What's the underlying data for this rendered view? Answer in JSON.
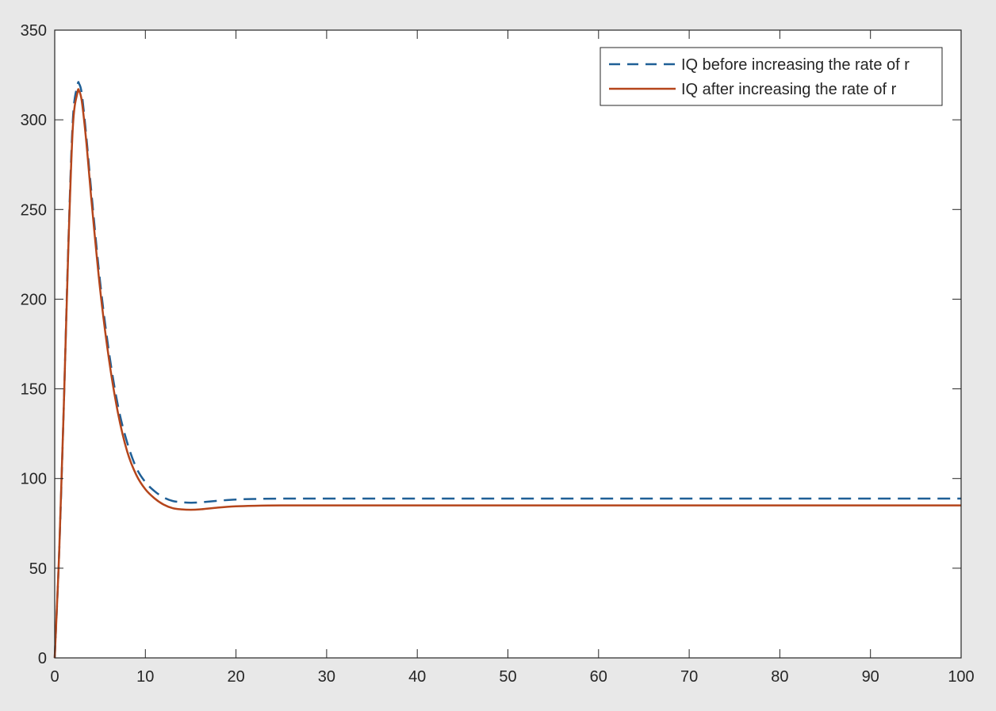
{
  "colors": {
    "figure_background": "#e8e8e8",
    "axes_background": "#ffffff",
    "axis": "#262626",
    "series_before": "#1f5f96",
    "series_after": "#b5451b"
  },
  "chart_data": {
    "type": "line",
    "title": "",
    "xlabel": "",
    "ylabel": "",
    "xlim": [
      0,
      100
    ],
    "ylim": [
      0,
      350
    ],
    "grid": false,
    "box": true,
    "legend_position": "top-right",
    "x_ticks": [
      0,
      10,
      20,
      30,
      40,
      50,
      60,
      70,
      80,
      90,
      100
    ],
    "x_tick_labels": [
      "0",
      "10",
      "20",
      "30",
      "40",
      "50",
      "60",
      "70",
      "80",
      "90",
      "100"
    ],
    "y_ticks": [
      0,
      50,
      100,
      150,
      200,
      250,
      300,
      350
    ],
    "y_tick_labels": [
      "0",
      "50",
      "100",
      "150",
      "200",
      "250",
      "300",
      "350"
    ],
    "series": [
      {
        "name": "IQ before increasing the rate of r",
        "style": "dashed",
        "color": "#1f5f96",
        "x": [
          0,
          0.5,
          1,
          1.5,
          2,
          2.5,
          2.7,
          3,
          3.5,
          4,
          5,
          6,
          7,
          8,
          9,
          10,
          11,
          12,
          13,
          14,
          15,
          16,
          18,
          20,
          22,
          25,
          30,
          40,
          50,
          60,
          70,
          80,
          90,
          100
        ],
        "y": [
          0,
          60,
          140,
          230,
          300,
          319,
          320,
          314,
          290,
          262,
          210,
          170,
          140,
          120,
          106,
          98,
          93,
          89.5,
          87.5,
          86.8,
          86.5,
          86.7,
          87.6,
          88.3,
          88.6,
          88.8,
          88.8,
          88.8,
          88.8,
          88.8,
          88.8,
          88.8,
          88.8,
          88.8
        ]
      },
      {
        "name": "IQ after increasing the rate of r",
        "style": "solid",
        "color": "#b5451b",
        "x": [
          0,
          0.5,
          1,
          1.5,
          2,
          2.5,
          2.7,
          3,
          3.5,
          4,
          5,
          6,
          7,
          8,
          9,
          10,
          11,
          12,
          13,
          14,
          15,
          16,
          18,
          20,
          22,
          25,
          30,
          40,
          50,
          60,
          70,
          80,
          90,
          100
        ],
        "y": [
          0,
          60,
          140,
          228,
          296,
          315,
          316,
          310,
          287,
          258,
          206,
          166,
          136,
          115,
          102,
          94,
          89,
          85.5,
          83.5,
          82.8,
          82.6,
          82.8,
          83.8,
          84.5,
          84.8,
          85,
          85,
          85,
          85,
          85,
          85,
          85,
          85,
          85
        ]
      }
    ]
  }
}
